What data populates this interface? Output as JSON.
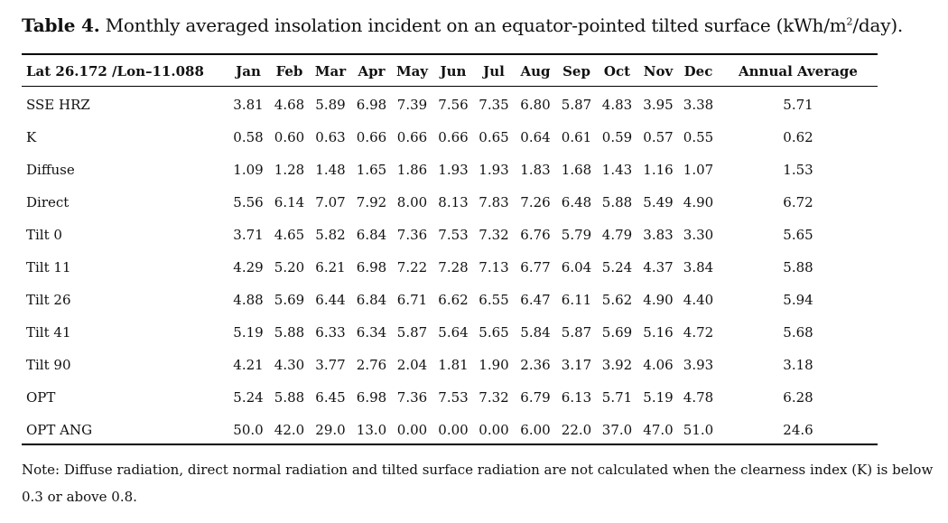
{
  "caption": {
    "label": "Table 4.",
    "text_before": " Monthly averaged insolation incident on an equator-pointed tilted surface (kWh/m",
    "superscript": "2",
    "text_after": "/day)."
  },
  "table": {
    "header_label": "Lat 26.172 /Lon–11.088",
    "columns": [
      "Jan",
      "Feb",
      "Mar",
      "Apr",
      "May",
      "Jun",
      "Jul",
      "Aug",
      "Sep",
      "Oct",
      "Nov",
      "Dec",
      "Annual Average"
    ],
    "rows": [
      {
        "label": "SSE HRZ",
        "values": [
          "3.81",
          "4.68",
          "5.89",
          "6.98",
          "7.39",
          "7.56",
          "7.35",
          "6.80",
          "5.87",
          "4.83",
          "3.95",
          "3.38",
          "5.71"
        ]
      },
      {
        "label": "K",
        "values": [
          "0.58",
          "0.60",
          "0.63",
          "0.66",
          "0.66",
          "0.66",
          "0.65",
          "0.64",
          "0.61",
          "0.59",
          "0.57",
          "0.55",
          "0.62"
        ]
      },
      {
        "label": "Diffuse",
        "values": [
          "1.09",
          "1.28",
          "1.48",
          "1.65",
          "1.86",
          "1.93",
          "1.93",
          "1.83",
          "1.68",
          "1.43",
          "1.16",
          "1.07",
          "1.53"
        ]
      },
      {
        "label": "Direct",
        "values": [
          "5.56",
          "6.14",
          "7.07",
          "7.92",
          "8.00",
          "8.13",
          "7.83",
          "7.26",
          "6.48",
          "5.88",
          "5.49",
          "4.90",
          "6.72"
        ]
      },
      {
        "label": "Tilt 0",
        "values": [
          "3.71",
          "4.65",
          "5.82",
          "6.84",
          "7.36",
          "7.53",
          "7.32",
          "6.76",
          "5.79",
          "4.79",
          "3.83",
          "3.30",
          "5.65"
        ]
      },
      {
        "label": "Tilt 11",
        "values": [
          "4.29",
          "5.20",
          "6.21",
          "6.98",
          "7.22",
          "7.28",
          "7.13",
          "6.77",
          "6.04",
          "5.24",
          "4.37",
          "3.84",
          "5.88"
        ]
      },
      {
        "label": "Tilt 26",
        "values": [
          "4.88",
          "5.69",
          "6.44",
          "6.84",
          "6.71",
          "6.62",
          "6.55",
          "6.47",
          "6.11",
          "5.62",
          "4.90",
          "4.40",
          "5.94"
        ]
      },
      {
        "label": "Tilt 41",
        "values": [
          "5.19",
          "5.88",
          "6.33",
          "6.34",
          "5.87",
          "5.64",
          "5.65",
          "5.84",
          "5.87",
          "5.69",
          "5.16",
          "4.72",
          "5.68"
        ]
      },
      {
        "label": "Tilt 90",
        "values": [
          "4.21",
          "4.30",
          "3.77",
          "2.76",
          "2.04",
          "1.81",
          "1.90",
          "2.36",
          "3.17",
          "3.92",
          "4.06",
          "3.93",
          "3.18"
        ]
      },
      {
        "label": "OPT",
        "values": [
          "5.24",
          "5.88",
          "6.45",
          "6.98",
          "7.36",
          "7.53",
          "7.32",
          "6.79",
          "6.13",
          "5.71",
          "5.19",
          "4.78",
          "6.28"
        ]
      },
      {
        "label": "OPT ANG",
        "values": [
          "50.0",
          "42.0",
          "29.0",
          "13.0",
          "0.00",
          "0.00",
          "0.00",
          "6.00",
          "22.0",
          "37.0",
          "47.0",
          "51.0",
          "24.6"
        ]
      }
    ]
  },
  "note": "Note: Diffuse radiation, direct normal radiation and tilted surface radiation are not calculated when the clearness index (K) is below 0.3 or above 0.8."
}
